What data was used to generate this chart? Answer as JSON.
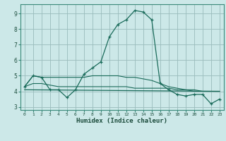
{
  "xlabel": "Humidex (Indice chaleur)",
  "background_color": "#cce8e8",
  "grid_color": "#99bbbb",
  "line_color": "#1a6b5a",
  "xlim": [
    -0.5,
    23.5
  ],
  "ylim": [
    2.8,
    9.6
  ],
  "yticks": [
    3,
    4,
    5,
    6,
    7,
    8,
    9
  ],
  "xticks": [
    0,
    1,
    2,
    3,
    4,
    5,
    6,
    7,
    8,
    9,
    10,
    11,
    12,
    13,
    14,
    15,
    16,
    17,
    18,
    19,
    20,
    21,
    22,
    23
  ],
  "series1_x": [
    0,
    1,
    2,
    3,
    4,
    5,
    6,
    7,
    8,
    9,
    10,
    11,
    12,
    13,
    14,
    15,
    16,
    17,
    18,
    19,
    20,
    21,
    22,
    23
  ],
  "series1_y": [
    4.3,
    5.0,
    4.9,
    4.1,
    4.1,
    3.6,
    4.1,
    5.1,
    5.5,
    5.9,
    7.5,
    8.3,
    8.6,
    9.2,
    9.1,
    8.6,
    4.5,
    4.1,
    3.8,
    3.7,
    3.8,
    3.8,
    3.2,
    3.5
  ],
  "series2_x": [
    0,
    1,
    2,
    3,
    4,
    5,
    6,
    7,
    8,
    9,
    10,
    11,
    12,
    13,
    14,
    15,
    16,
    17,
    18,
    19,
    20,
    21,
    22,
    23
  ],
  "series2_y": [
    4.3,
    5.0,
    4.9,
    4.9,
    4.9,
    4.9,
    4.9,
    4.9,
    5.0,
    5.0,
    5.0,
    5.0,
    4.9,
    4.9,
    4.8,
    4.7,
    4.5,
    4.3,
    4.2,
    4.1,
    4.1,
    4.0,
    4.0,
    4.0
  ],
  "series3_x": [
    0,
    1,
    2,
    3,
    4,
    5,
    6,
    7,
    8,
    9,
    10,
    11,
    12,
    13,
    14,
    15,
    16,
    17,
    18,
    19,
    20,
    21,
    22,
    23
  ],
  "series3_y": [
    4.3,
    4.5,
    4.5,
    4.4,
    4.3,
    4.3,
    4.3,
    4.3,
    4.3,
    4.3,
    4.3,
    4.3,
    4.3,
    4.2,
    4.2,
    4.2,
    4.2,
    4.2,
    4.1,
    4.1,
    4.0,
    4.0,
    4.0,
    4.0
  ],
  "series4_x": [
    0,
    23
  ],
  "series4_y": [
    4.1,
    4.0
  ]
}
